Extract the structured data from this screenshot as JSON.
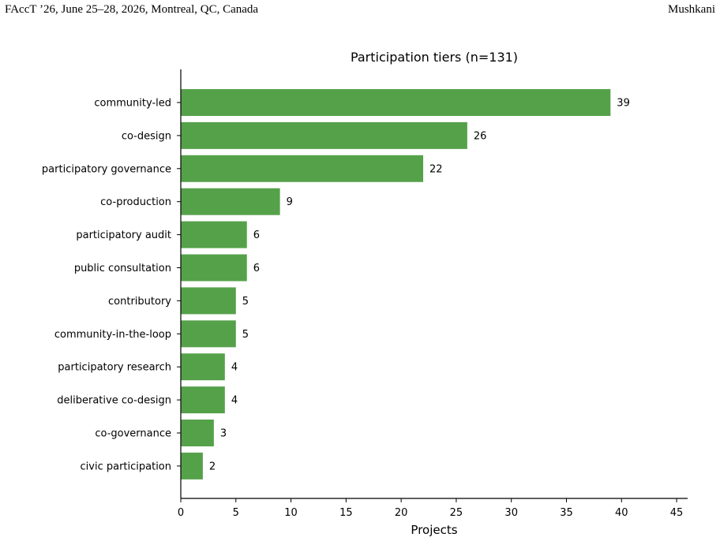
{
  "header": {
    "left": "FAccT ’26, June 25–28, 2026, Montreal, QC, Canada",
    "right": "Mushkani"
  },
  "colors": {
    "bar": "#55a14a"
  },
  "chart_data": {
    "type": "bar",
    "orientation": "horizontal",
    "title": "Participation tiers (n=131)",
    "xlabel": "Projects",
    "ylabel": "",
    "xlim": [
      0,
      46
    ],
    "xticks": [
      0,
      5,
      10,
      15,
      20,
      25,
      30,
      35,
      40,
      45
    ],
    "grid": false,
    "data_labels": true,
    "categories": [
      "community-led",
      "co-design",
      "participatory governance",
      "co-production",
      "participatory audit",
      "public consultation",
      "contributory",
      "community-in-the-loop",
      "participatory research",
      "deliberative co-design",
      "co-governance",
      "civic participation"
    ],
    "values": [
      39,
      26,
      22,
      9,
      6,
      6,
      5,
      5,
      4,
      4,
      3,
      2
    ]
  }
}
